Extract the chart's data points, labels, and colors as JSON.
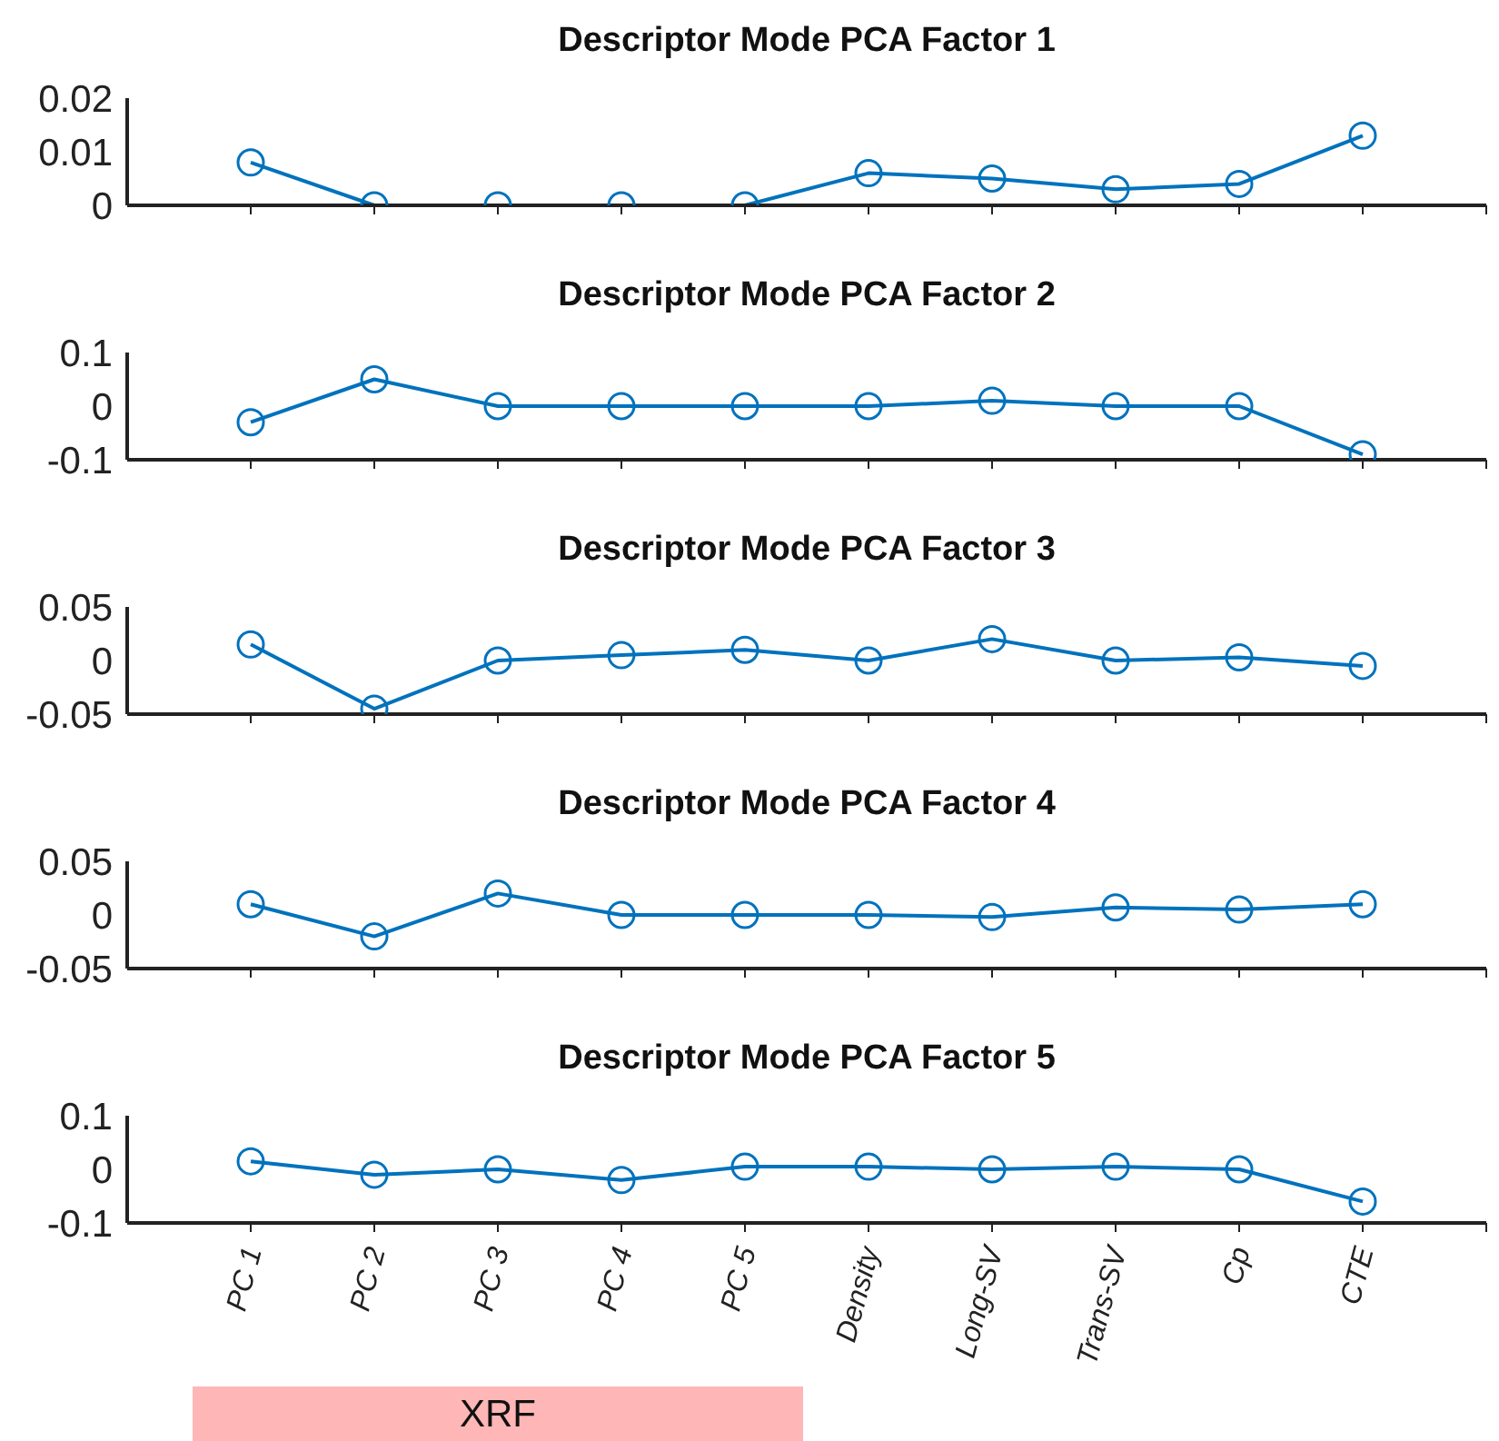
{
  "chart_data": [
    {
      "type": "line",
      "title": "Descriptor Mode PCA Factor 1",
      "categories": [
        null,
        null,
        null,
        null,
        null,
        null,
        null,
        null,
        null,
        null
      ],
      "values": [
        0.008,
        0,
        0,
        0,
        0,
        0.006,
        0.005,
        0.003,
        0.004,
        0.013
      ],
      "color": "#0072bd",
      "ylim": [
        0,
        0.02
      ],
      "yticks": [
        0,
        0.01,
        0.02
      ],
      "marker": "circle",
      "grid": false,
      "tick_labels": "y"
    },
    {
      "type": "line",
      "title": "Descriptor Mode PCA Factor 2",
      "categories": [
        null,
        null,
        null,
        null,
        null,
        null,
        null,
        null,
        null,
        null
      ],
      "values": [
        -0.03,
        0.05,
        0,
        0,
        0,
        0,
        0.01,
        0,
        0,
        -0.09
      ],
      "color": "#0072bd",
      "ylim": [
        -0.1,
        0.1
      ],
      "yticks": [
        -0.1,
        0,
        0.1
      ],
      "marker": "circle",
      "grid": false,
      "tick_labels": "y"
    },
    {
      "type": "line",
      "title": "Descriptor Mode PCA Factor 3",
      "categories": [
        null,
        null,
        null,
        null,
        null,
        null,
        null,
        null,
        null,
        null
      ],
      "values": [
        0.015,
        -0.045,
        0,
        0.005,
        0.01,
        0,
        0.02,
        0,
        0.003,
        -0.005
      ],
      "color": "#0072bd",
      "ylim": [
        -0.05,
        0.05
      ],
      "yticks": [
        -0.05,
        0,
        0.05
      ],
      "marker": "circle",
      "grid": false,
      "tick_labels": "y"
    },
    {
      "type": "line",
      "title": "Descriptor Mode PCA Factor 4",
      "categories": [
        null,
        null,
        null,
        null,
        null,
        null,
        null,
        null,
        null,
        null
      ],
      "values": [
        0.01,
        -0.02,
        0.02,
        0,
        0,
        0,
        -0.002,
        0.007,
        0.005,
        0.01
      ],
      "color": "#0072bd",
      "ylim": [
        -0.05,
        0.05
      ],
      "yticks": [
        -0.05,
        0,
        0.05
      ],
      "marker": "circle",
      "grid": false,
      "tick_labels": "y"
    },
    {
      "type": "line",
      "title": "Descriptor Mode PCA Factor 5",
      "categories": [
        "PC 1",
        "PC 2",
        "PC 3",
        "PC 4",
        "PC 5",
        "Density",
        "Long-SV",
        "Trans-SV",
        "Cp",
        "CTE"
      ],
      "values": [
        0.015,
        -0.01,
        0,
        -0.02,
        0.005,
        0.005,
        0,
        0.005,
        0,
        -0.06
      ],
      "color": "#0072bd",
      "ylim": [
        -0.1,
        0.1
      ],
      "yticks": [
        -0.1,
        0,
        0.1
      ],
      "marker": "circle",
      "grid": false,
      "annotations": [
        "XRF"
      ]
    }
  ]
}
